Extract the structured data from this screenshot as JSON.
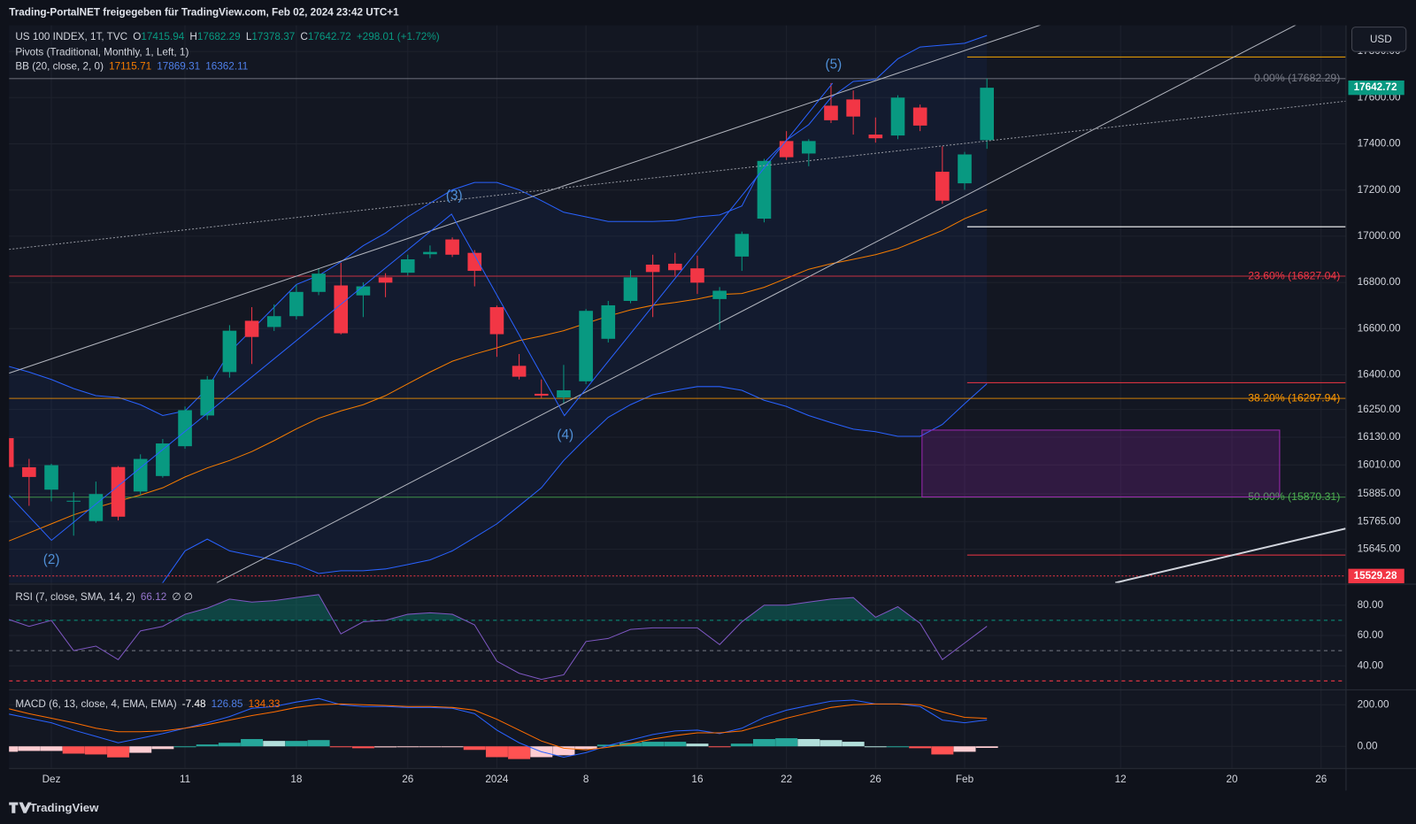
{
  "header": {
    "text": "Trading-PortalNET freigegeben für TradingView.com, Feb 02, 2024 23:42 UTC+1",
    "currency": "USD",
    "footer": "TradingView"
  },
  "chart_data": [
    {
      "type": "candlestick",
      "symbol": "US 100 INDEX, 1T, TVC",
      "legend_keys": [
        "O",
        "H",
        "L",
        "C"
      ],
      "change": "+298.01 (+1.72%)",
      "up_color": "#089981",
      "down_color": "#f23645",
      "open": [
        16126,
        16000,
        15903,
        15853,
        15767,
        16001,
        15895,
        15962,
        16091,
        16224,
        16412,
        16634,
        16607,
        16654,
        16759,
        16787,
        16744,
        16822,
        16842,
        16922,
        16986,
        16928,
        16693,
        16439,
        16318,
        16302,
        16372,
        16556,
        16720,
        16877,
        16881,
        16861,
        16728,
        16912,
        17076,
        17412,
        17358,
        17565,
        17592,
        17440,
        17436,
        17557,
        17279,
        17229,
        17415.94
      ],
      "high": [
        16140,
        16036,
        16015,
        15892,
        15938,
        16005,
        16056,
        16122,
        16263,
        16395,
        16615,
        16693,
        16705,
        16790,
        16861,
        16885,
        16800,
        16840,
        16920,
        16960,
        16995,
        16940,
        16700,
        16490,
        16380,
        16443,
        16685,
        16720,
        16853,
        16920,
        16928,
        16916,
        16780,
        17020,
        17335,
        17455,
        17420,
        17663,
        17631,
        17514,
        17610,
        17570,
        17389,
        17365,
        17682.29
      ],
      "low": [
        15995,
        15833,
        15852,
        15704,
        15760,
        15770,
        15880,
        15955,
        16080,
        16205,
        16388,
        16447,
        16590,
        16640,
        16745,
        16575,
        16650,
        16736,
        16830,
        16905,
        16910,
        16783,
        16478,
        16380,
        16300,
        16275,
        16360,
        16540,
        16710,
        16650,
        16830,
        16750,
        16595,
        16850,
        17060,
        17330,
        17303,
        17490,
        17440,
        17405,
        17420,
        17455,
        17140,
        17201,
        17378.37
      ],
      "close": [
        16001,
        15958,
        16009,
        15855,
        15884,
        15786,
        16036,
        16103,
        16247,
        16380,
        16591,
        16564,
        16654,
        16759,
        16838,
        16580,
        16783,
        16799,
        16900,
        16932,
        16920,
        16850,
        16576,
        16392,
        16310,
        16333,
        16677,
        16701,
        16822,
        16845,
        16853,
        16799,
        16764,
        17010,
        17326,
        17342,
        17412,
        17502,
        17518,
        17424,
        17600,
        17479,
        17154,
        17354,
        17642.72
      ],
      "xlim": [
        0.1,
        60.1
      ],
      "xticks": [
        {
          "value": 2,
          "label": "Dez"
        },
        {
          "value": 8,
          "label": "11"
        },
        {
          "value": 13,
          "label": "18"
        },
        {
          "value": 18,
          "label": "26"
        },
        {
          "value": 22,
          "label": "2024"
        },
        {
          "value": 26,
          "label": "8"
        },
        {
          "value": 31,
          "label": "16"
        },
        {
          "value": 35,
          "label": "22"
        },
        {
          "value": 39,
          "label": "26"
        },
        {
          "value": 43,
          "label": "Feb"
        },
        {
          "value": 50,
          "label": "12"
        },
        {
          "value": 55,
          "label": "20"
        },
        {
          "value": 59,
          "label": "26"
        }
      ],
      "ylim": [
        15500,
        17913
      ],
      "yticks": [
        {
          "value": 17800,
          "label": "17800.00"
        },
        {
          "value": 17600,
          "label": "17600.00"
        },
        {
          "value": 17400,
          "label": "17400.00"
        },
        {
          "value": 17200,
          "label": "17200.00"
        },
        {
          "value": 17000,
          "label": "17000.00"
        },
        {
          "value": 16800,
          "label": "16800.00"
        },
        {
          "value": 16600,
          "label": "16600.00"
        },
        {
          "value": 16400,
          "label": "16400.00"
        },
        {
          "value": 16250,
          "label": "16250.00"
        },
        {
          "value": 16130,
          "label": "16130.00"
        },
        {
          "value": 16010,
          "label": "16010.00"
        },
        {
          "value": 15885,
          "label": "15885.00"
        },
        {
          "value": 15765,
          "label": "15765.00"
        },
        {
          "value": 15645,
          "label": "15645.00"
        }
      ],
      "grid": true,
      "bb": {
        "label": "BB (20, close, 2, 0)",
        "basis_color": "#f57c00",
        "band_color": "#2962ff",
        "basis": [
          15677,
          15716,
          15755,
          15794,
          15825,
          15853,
          15880,
          15911,
          15958,
          15997,
          16029,
          16068,
          16115,
          16166,
          16212,
          16244,
          16271,
          16310,
          16361,
          16412,
          16459,
          16490,
          16517,
          16548,
          16568,
          16591,
          16623,
          16654,
          16681,
          16701,
          16713,
          16728,
          16748,
          16752,
          16779,
          16818,
          16857,
          16881,
          16900,
          16920,
          16947,
          16986,
          17025,
          17076,
          17115.71
        ],
        "upper": [
          16439,
          16412,
          16380,
          16341,
          16310,
          16302,
          16271,
          16224,
          16244,
          16341,
          16498,
          16595,
          16693,
          16791,
          16830,
          16889,
          16959,
          17014,
          17084,
          17143,
          17201,
          17233,
          17233,
          17201,
          17154,
          17104,
          17084,
          17064,
          17064,
          17064,
          17068,
          17084,
          17092,
          17131,
          17319,
          17416,
          17483,
          17600,
          17670,
          17678,
          17768,
          17819,
          17827,
          17835,
          17869.31
        ],
        "lower": [
          15450,
          15430,
          15420,
          15400,
          15400,
          15420,
          15460,
          15500,
          15638,
          15689,
          15638,
          15618,
          15599,
          15579,
          15540,
          15552,
          15552,
          15560,
          15579,
          15599,
          15638,
          15696,
          15755,
          15833,
          15911,
          16029,
          16126,
          16216,
          16271,
          16314,
          16333,
          16349,
          16349,
          16333,
          16290,
          16263,
          16224,
          16193,
          16165,
          16154,
          16134,
          16134,
          16185,
          16275,
          16362.11
        ]
      },
      "pivots": {
        "label": "Pivots (Traditional, Monthly, 1, Left, 1)",
        "levels": [
          {
            "value": 17776,
            "color": "#f7a600"
          },
          {
            "value": 17041,
            "color": "#ffffff"
          },
          {
            "value": 16366,
            "color": "#f23645"
          },
          {
            "value": 15620,
            "color": "#f23645"
          }
        ]
      },
      "fib": [
        {
          "value": 17682.29,
          "label": "0.00% (17682.29)",
          "color": "#787b86"
        },
        {
          "value": 16827.04,
          "label": "23.60% (16827.04)",
          "color": "#f23645"
        },
        {
          "value": 16297.94,
          "label": "38.20% (16297.94)",
          "color": "#ff9800"
        },
        {
          "value": 15870.31,
          "label": "50.00% (15870.31)",
          "color": "#4caf50"
        }
      ],
      "marker_level": 15529.28,
      "waves": [
        "(2)",
        "(3)",
        "(4)",
        "(5)"
      ]
    },
    {
      "type": "line",
      "title": "RSI (7, close, SMA, 14, 2)",
      "na": "∅ ∅",
      "color": "#7e57c2",
      "values": [
        71,
        66,
        70,
        50,
        53,
        44,
        63,
        66,
        74,
        78,
        84,
        82,
        83,
        85,
        87,
        61,
        69,
        70,
        74,
        75,
        74,
        67,
        43,
        35,
        31,
        34,
        56,
        58,
        64,
        65,
        65,
        65,
        54,
        69,
        80,
        80,
        82,
        84,
        85,
        72,
        79,
        68,
        44,
        55,
        66.12
      ],
      "ylim": [
        25,
        93
      ],
      "yticks": [
        {
          "value": 40,
          "label": "40.00"
        },
        {
          "value": 60,
          "label": "60.00"
        },
        {
          "value": 80,
          "label": "80.00"
        }
      ],
      "levels": [
        {
          "value": 70,
          "color": "#089981"
        },
        {
          "value": 50,
          "color": "#787b86"
        },
        {
          "value": 30,
          "color": "#f23645"
        }
      ]
    },
    {
      "type": "macd",
      "title": "MACD (6, 13, close, 4, EMA, EMA)",
      "histogram": [
        -26,
        -22,
        -22,
        -35,
        -39,
        -53,
        -31,
        -13,
        0,
        9,
        17,
        35,
        26,
        26,
        30,
        -4,
        -9,
        -5,
        -4,
        -4,
        -4,
        -17,
        -52,
        -61,
        -52,
        -43,
        -13,
        8,
        17,
        22,
        22,
        13,
        -4,
        13,
        35,
        39,
        35,
        30,
        22,
        0,
        0,
        -9,
        -39,
        -26,
        -7.48
      ],
      "macd": [
        157,
        135,
        113,
        78,
        48,
        17,
        39,
        61,
        87,
        113,
        143,
        183,
        191,
        213,
        230,
        200,
        191,
        191,
        187,
        187,
        183,
        157,
        78,
        17,
        -26,
        -52,
        -30,
        4,
        30,
        57,
        74,
        78,
        61,
        87,
        139,
        174,
        196,
        217,
        222,
        204,
        204,
        191,
        126,
        113,
        126.85
      ],
      "signal": [
        183,
        157,
        135,
        113,
        87,
        70,
        70,
        74,
        87,
        104,
        126,
        148,
        165,
        187,
        200,
        204,
        200,
        196,
        191,
        191,
        187,
        174,
        130,
        78,
        26,
        -9,
        -17,
        -4,
        13,
        35,
        52,
        65,
        65,
        74,
        104,
        135,
        161,
        187,
        200,
        204,
        204,
        200,
        165,
        139,
        134.33
      ],
      "colors": {
        "macd": "#2962ff",
        "signal": "#ff6d00",
        "up": "#26a69a",
        "up_fading": "#b2dfdb",
        "down": "#ff5252",
        "down_fading": "#ffcdd2"
      },
      "ylim": [
        -104,
        265
      ],
      "yticks": [
        {
          "value": 0,
          "label": "0.00"
        },
        {
          "value": 200,
          "label": "200.00"
        }
      ]
    }
  ]
}
